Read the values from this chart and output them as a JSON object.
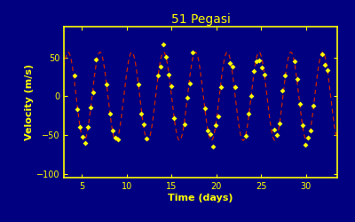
{
  "title": "51 Pegasi",
  "xlabel": "Time (days)",
  "ylabel": "Velocity (m/s)",
  "bg_color": "#000080",
  "plot_bg_color": "#000080",
  "text_color": "#FFFF00",
  "spine_color": "#FFFF00",
  "tick_color": "#FFFF00",
  "sine_amplitude": 57,
  "sine_period": 3.55,
  "sine_phase": 1.7,
  "sine_color": "#CC2200",
  "marker_color": "#FFFF00",
  "marker": "D",
  "marker_size": 3,
  "xlim": [
    3.0,
    33.5
  ],
  "ylim": [
    -105,
    90
  ],
  "xticks": [
    5,
    10,
    15,
    20,
    25,
    30
  ],
  "yticks": [
    -100,
    -50,
    0,
    50
  ],
  "title_fontsize": 10,
  "label_fontsize": 8,
  "tick_fontsize": 7,
  "figsize": [
    4.0,
    2.5
  ],
  "dpi": 100,
  "data_x": [
    4.2,
    4.5,
    4.8,
    5.1,
    5.4,
    5.7,
    6.0,
    6.3,
    6.6,
    7.8,
    8.1,
    8.4,
    8.7,
    9.0,
    11.3,
    11.6,
    11.9,
    12.2,
    13.5,
    13.8,
    14.1,
    14.4,
    14.7,
    15.0,
    15.3,
    16.5,
    16.8,
    17.1,
    17.4,
    18.7,
    19.0,
    19.3,
    19.6,
    19.9,
    20.2,
    20.5,
    21.5,
    21.8,
    22.1,
    23.3,
    23.6,
    23.9,
    24.2,
    24.5,
    24.8,
    25.1,
    25.4,
    26.5,
    26.8,
    27.1,
    27.4,
    27.7,
    28.7,
    29.0,
    29.3,
    29.6,
    29.9,
    30.2,
    30.5,
    30.8,
    31.8,
    32.1,
    32.4
  ],
  "noise_seed": 7
}
